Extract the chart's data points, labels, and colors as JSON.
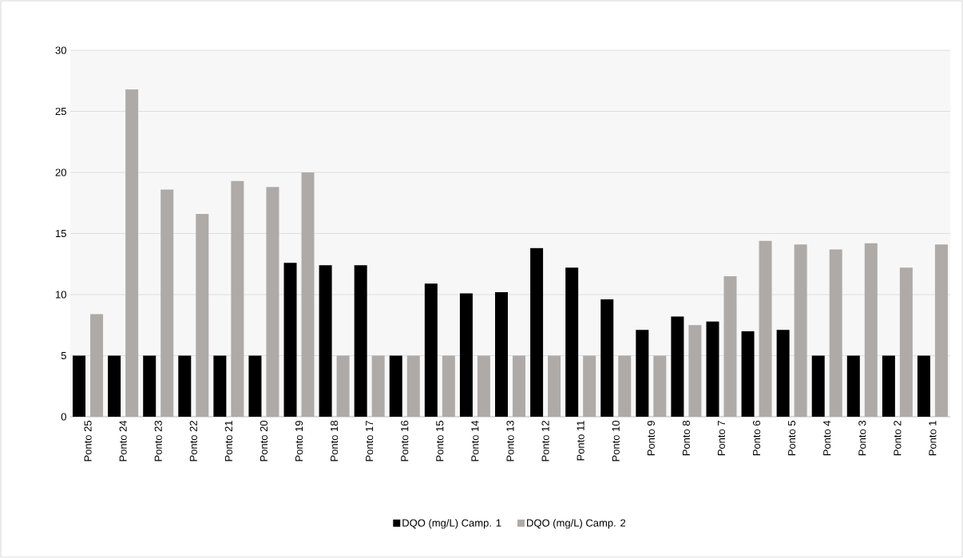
{
  "chart_data": {
    "type": "bar",
    "categories": [
      "Ponto 25",
      "Ponto 24",
      "Ponto 23",
      "Ponto 22",
      "Ponto 21",
      "Ponto 20",
      "Ponto 19",
      "Ponto 18",
      "Ponto 17",
      "Ponto 16",
      "Ponto 15",
      "Ponto 14",
      "Ponto 13",
      "Ponto 12",
      "Ponto 11",
      "Ponto 10",
      "Ponto 9",
      "Ponto 8",
      "Ponto 7",
      "Ponto 6",
      "Ponto 5",
      "Ponto 4",
      "Ponto 3",
      "Ponto 2",
      "Ponto 1"
    ],
    "series": [
      {
        "name": "DQO (mg/L) Camp. 1",
        "color": "#000000",
        "values": [
          5,
          5,
          5,
          5,
          5,
          5,
          12.6,
          12.4,
          12.4,
          5,
          10.9,
          10.1,
          10.2,
          13.8,
          12.2,
          9.6,
          7.1,
          8.2,
          7.8,
          7.0,
          7.1,
          5,
          5,
          5,
          5
        ]
      },
      {
        "name": "DQO (mg/L) Camp. 2",
        "color": "#aeaaa8",
        "values": [
          8.4,
          26.8,
          18.6,
          16.6,
          19.3,
          18.8,
          20.0,
          5,
          5,
          5,
          5,
          5,
          5,
          5,
          5,
          5,
          5,
          7.5,
          11.5,
          14.4,
          14.1,
          13.7,
          14.2,
          12.2,
          14.1
        ]
      }
    ],
    "ylim": [
      0,
      30
    ],
    "yticks": [
      0,
      5,
      10,
      15,
      20,
      25,
      30
    ],
    "grid": "y",
    "legend": "bottom"
  }
}
